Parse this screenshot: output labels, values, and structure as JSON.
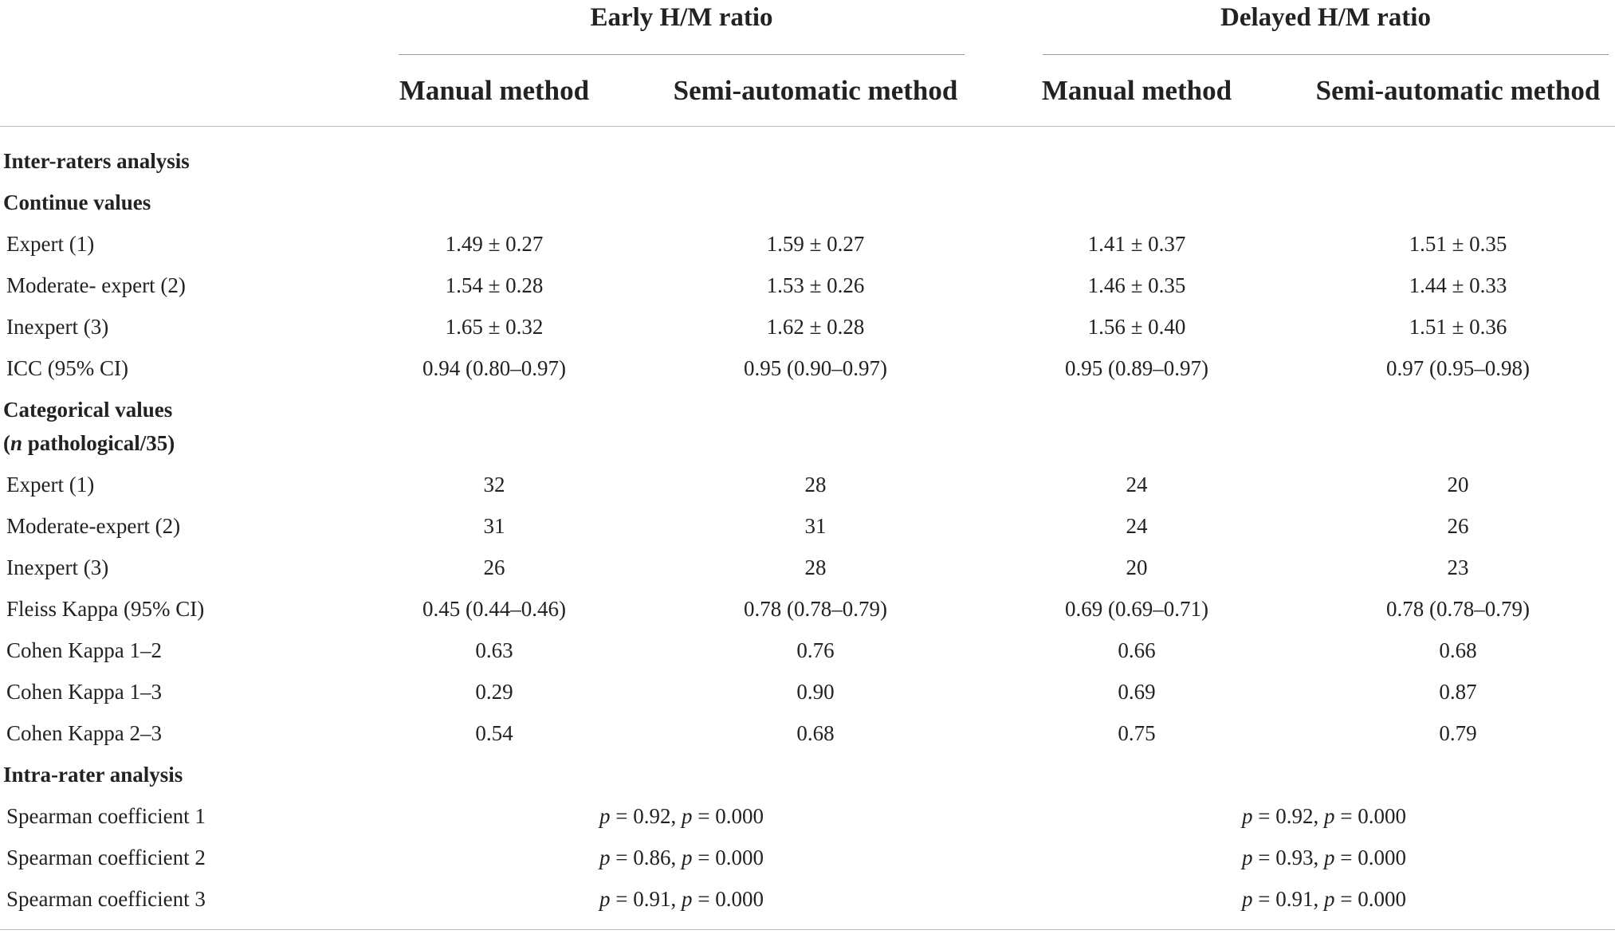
{
  "header": {
    "groups": [
      "Early H/M ratio",
      "Delayed H/M ratio"
    ],
    "columns": [
      "Manual method",
      "Semi-automatic method",
      "Manual method",
      "Semi-automatic method"
    ]
  },
  "sections": {
    "inter": "Inter-raters analysis",
    "continue": "Continue values",
    "categorical_line1": "Categorical values",
    "categorical_line2_n": "n",
    "categorical_line2_rest": " pathological/35)",
    "categorical_line2_open": "(",
    "intra": "Intra-rater analysis"
  },
  "continue_rows": [
    {
      "label": "Expert (1)",
      "values": [
        "1.49 ± 0.27",
        "1.59 ± 0.27",
        "1.41 ± 0.37",
        "1.51 ± 0.35"
      ]
    },
    {
      "label": "Moderate- expert (2)",
      "values": [
        "1.54 ± 0.28",
        "1.53 ± 0.26",
        "1.46 ± 0.35",
        "1.44 ± 0.33"
      ]
    },
    {
      "label": "Inexpert (3)",
      "values": [
        "1.65 ± 0.32",
        "1.62 ± 0.28",
        "1.56 ± 0.40",
        "1.51 ± 0.36"
      ]
    },
    {
      "label": "ICC (95% CI)",
      "values": [
        "0.94 (0.80–0.97)",
        "0.95 (0.90–0.97)",
        "0.95 (0.89–0.97)",
        "0.97 (0.95–0.98)"
      ]
    }
  ],
  "categorical_rows": [
    {
      "label": "Expert (1)",
      "values": [
        "32",
        "28",
        "24",
        "20"
      ]
    },
    {
      "label": "Moderate-expert (2)",
      "values": [
        "31",
        "31",
        "24",
        "26"
      ]
    },
    {
      "label": "Inexpert (3)",
      "values": [
        "26",
        "28",
        "20",
        "23"
      ]
    },
    {
      "label": "Fleiss Kappa (95% CI)",
      "values": [
        "0.45 (0.44–0.46)",
        "0.78 (0.78–0.79)",
        "0.69 (0.69–0.71)",
        "0.78 (0.78–0.79)"
      ]
    },
    {
      "label": "Cohen Kappa 1–2",
      "values": [
        "0.63",
        "0.76",
        "0.66",
        "0.68"
      ]
    },
    {
      "label": "Cohen Kappa 1–3",
      "values": [
        "0.29",
        "0.90",
        "0.69",
        "0.87"
      ]
    },
    {
      "label": "Cohen Kappa 2–3",
      "values": [
        "0.54",
        "0.68",
        "0.75",
        "0.79"
      ]
    }
  ],
  "intra_rows": [
    {
      "label": "Spearman coefficient 1",
      "early": {
        "rho_sym": "p",
        "rho_val": " = 0.92, ",
        "p_sym": "p",
        "p_val": " = 0.000"
      },
      "delayed": {
        "rho_sym": "p",
        "rho_val": " = 0.92, ",
        "p_sym": "p",
        "p_val": " = 0.000"
      }
    },
    {
      "label": "Spearman coefficient 2",
      "early": {
        "rho_sym": "p",
        "rho_val": " = 0.86, ",
        "p_sym": "p",
        "p_val": " = 0.000"
      },
      "delayed": {
        "rho_sym": "p",
        "rho_val": " = 0.93, ",
        "p_sym": "p",
        "p_val": " = 0.000"
      }
    },
    {
      "label": "Spearman coefficient 3",
      "early": {
        "rho_sym": "p",
        "rho_val": " = 0.91, ",
        "p_sym": "p",
        "p_val": " = 0.000"
      },
      "delayed": {
        "rho_sym": "p",
        "rho_val": " = 0.91, ",
        "p_sym": "p",
        "p_val": " = 0.000"
      }
    }
  ]
}
